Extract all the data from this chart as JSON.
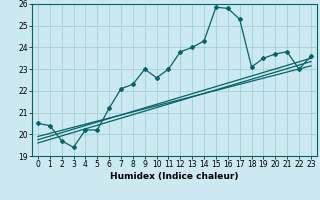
{
  "title": "",
  "xlabel": "Humidex (Indice chaleur)",
  "bg_color": "#cce8f0",
  "line_color": "#006666",
  "grid_color": "#99cccc",
  "xlim": [
    -0.5,
    23.5
  ],
  "ylim": [
    19,
    26
  ],
  "xticks": [
    0,
    1,
    2,
    3,
    4,
    5,
    6,
    7,
    8,
    9,
    10,
    11,
    12,
    13,
    14,
    15,
    16,
    17,
    18,
    19,
    20,
    21,
    22,
    23
  ],
  "yticks": [
    19,
    20,
    21,
    22,
    23,
    24,
    25,
    26
  ],
  "series": [
    [
      0,
      20.5
    ],
    [
      1,
      20.4
    ],
    [
      2,
      19.7
    ],
    [
      3,
      19.4
    ],
    [
      4,
      20.2
    ],
    [
      5,
      20.2
    ],
    [
      6,
      21.2
    ],
    [
      7,
      22.1
    ],
    [
      8,
      22.3
    ],
    [
      9,
      23.0
    ],
    [
      10,
      22.6
    ],
    [
      11,
      23.0
    ],
    [
      12,
      23.8
    ],
    [
      13,
      24.0
    ],
    [
      14,
      24.3
    ],
    [
      15,
      25.85
    ],
    [
      16,
      25.8
    ],
    [
      17,
      25.3
    ],
    [
      18,
      23.1
    ],
    [
      19,
      23.5
    ],
    [
      20,
      23.7
    ],
    [
      21,
      23.8
    ],
    [
      22,
      23.0
    ],
    [
      23,
      23.6
    ]
  ],
  "regression_lines": [
    [
      [
        0,
        19.6
      ],
      [
        23,
        23.35
      ]
    ],
    [
      [
        0,
        19.75
      ],
      [
        23,
        23.5
      ]
    ],
    [
      [
        0,
        19.9
      ],
      [
        23,
        23.15
      ]
    ]
  ],
  "tick_fontsize": 5.5,
  "xlabel_fontsize": 6.5
}
